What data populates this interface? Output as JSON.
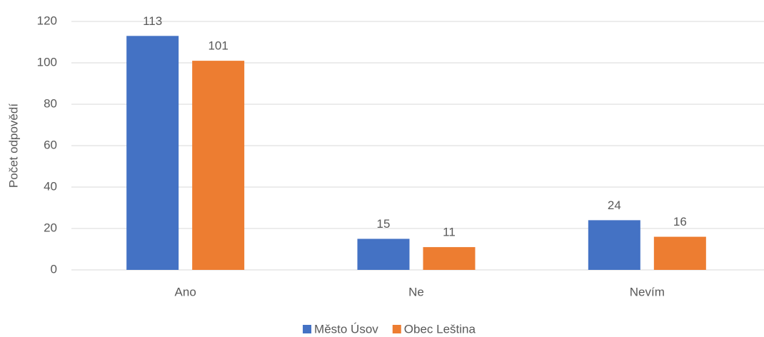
{
  "chart_data": {
    "type": "bar",
    "ylabel": "Počet odpovědí",
    "categories": [
      "Ano",
      "Ne",
      "Nevím"
    ],
    "series": [
      {
        "name": "Město Úsov",
        "color": "#4472c4",
        "values": [
          113,
          15,
          24
        ]
      },
      {
        "name": "Obec Leština",
        "color": "#ed7d31",
        "values": [
          101,
          11,
          16
        ]
      }
    ],
    "ylim": [
      0,
      120
    ],
    "yticks": [
      0,
      20,
      40,
      60,
      80,
      100,
      120
    ],
    "grid": true,
    "legend": "bottom"
  }
}
